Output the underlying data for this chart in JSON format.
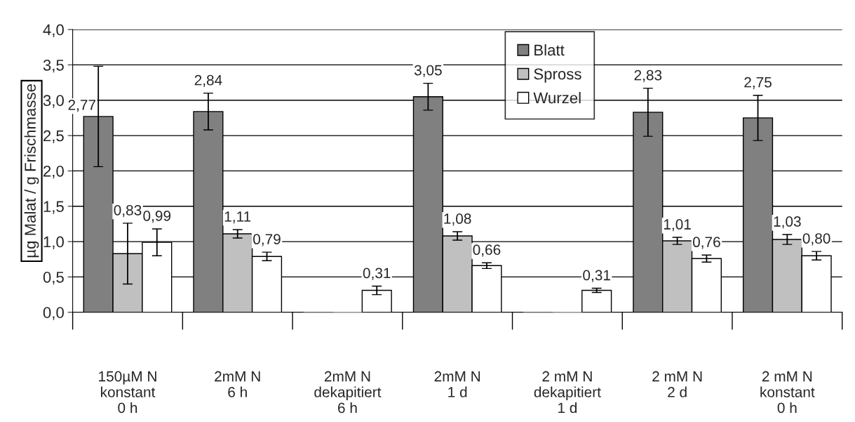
{
  "chart_data": {
    "type": "bar",
    "ylabel": "µg Malat / g Frischmasse",
    "categories": [
      "150µM N\nkonstant\n0 h",
      "2mM N\n6 h",
      "2mM N\ndekapitiert\n6 h",
      "2mM N\n1 d",
      "2 mM N\ndekapitiert\n1 d",
      "2 mM N\n2 d",
      "2 mM N\nkonstant\n0 h"
    ],
    "series": [
      {
        "name": "Blatt",
        "color": "#808080",
        "values": [
          2.77,
          2.84,
          0,
          3.05,
          0,
          2.83,
          2.75
        ],
        "errors": [
          0.71,
          0.26,
          null,
          0.19,
          null,
          0.34,
          0.32
        ],
        "value_labels": [
          "2,77",
          "2,84",
          null,
          "3,05",
          null,
          "2,83",
          "2,75"
        ]
      },
      {
        "name": "Spross",
        "color": "#c0c0c0",
        "values": [
          0.83,
          1.11,
          0,
          1.08,
          0,
          1.01,
          1.03
        ],
        "errors": [
          0.43,
          0.06,
          null,
          0.06,
          null,
          0.05,
          0.07
        ],
        "value_labels": [
          "0,83",
          "1,11",
          null,
          "1,08",
          null,
          "1,01",
          "1,03"
        ]
      },
      {
        "name": "Wurzel",
        "color": "#ffffff",
        "values": [
          0.99,
          0.79,
          0.31,
          0.66,
          0.31,
          0.76,
          0.8
        ],
        "errors": [
          0.19,
          0.06,
          0.06,
          0.04,
          0.03,
          0.05,
          0.06
        ],
        "value_labels": [
          "0,99",
          "0,79",
          "0,31",
          "0,66",
          "0,31",
          "0,76",
          "0,80"
        ]
      }
    ],
    "ylim": [
      0,
      4
    ],
    "yticks": [
      {
        "value": 0,
        "label": "0,0"
      },
      {
        "value": 0.5,
        "label": "0,5"
      },
      {
        "value": 1,
        "label": "1,0"
      },
      {
        "value": 1.5,
        "label": "1,5"
      },
      {
        "value": 2,
        "label": "2,0"
      },
      {
        "value": 2.5,
        "label": "2,5"
      },
      {
        "value": 3,
        "label": "3,0"
      },
      {
        "value": 3.5,
        "label": "3,5"
      },
      {
        "value": 4,
        "label": "4,0"
      }
    ],
    "grid": "y",
    "legend": "top"
  }
}
